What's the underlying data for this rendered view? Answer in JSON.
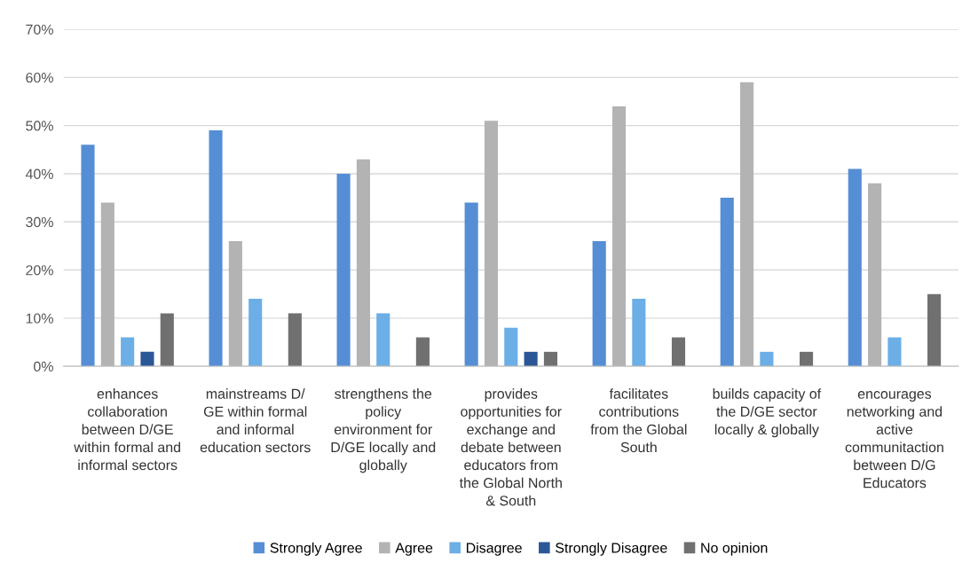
{
  "chart_data": {
    "type": "bar",
    "categories": [
      "enhances\ncollaboration\nbetween D/GE\nwithin formal and\ninformal sectors",
      "mainstreams D/\nGE within formal\nand informal\neducation sectors",
      "strengthens the\npolicy\nenvironment for\nD/GE locally and\nglobally",
      "provides\nopportunities for\nexchange and\ndebate between\neducators from\nthe Global North\n& South",
      "facilitates\ncontributions\nfrom the Global\nSouth",
      "builds capacity of\nthe D/GE sector\nlocally & globally",
      "encourages\nnetworking and\nactive\ncommunitaction\nbetween D/G\nEducators"
    ],
    "series": [
      {
        "name": "Strongly Agree",
        "color": "#558ed5",
        "values": [
          46,
          49,
          40,
          34,
          26,
          35,
          41
        ]
      },
      {
        "name": "Agree",
        "color": "#b3b3b3",
        "values": [
          34,
          26,
          43,
          51,
          54,
          59,
          38
        ]
      },
      {
        "name": "Disagree",
        "color": "#6caee6",
        "values": [
          6,
          14,
          11,
          8,
          14,
          3,
          6
        ]
      },
      {
        "name": "Strongly Disagree",
        "color": "#2b5797",
        "values": [
          3,
          null,
          null,
          3,
          null,
          null,
          null
        ]
      },
      {
        "name": "No opinion",
        "color": "#707070",
        "values": [
          11,
          11,
          6,
          3,
          6,
          3,
          15
        ]
      }
    ],
    "ylim": [
      0,
      70
    ],
    "yticks": [
      {
        "value": 0,
        "label": "0%"
      },
      {
        "value": 10,
        "label": "10%"
      },
      {
        "value": 20,
        "label": "20%"
      },
      {
        "value": 30,
        "label": "30%"
      },
      {
        "value": 40,
        "label": "40%"
      },
      {
        "value": 50,
        "label": "50%"
      },
      {
        "value": 60,
        "label": "60%"
      },
      {
        "value": 70,
        "label": "70%"
      }
    ],
    "grid": "y",
    "legend": "bottom"
  }
}
